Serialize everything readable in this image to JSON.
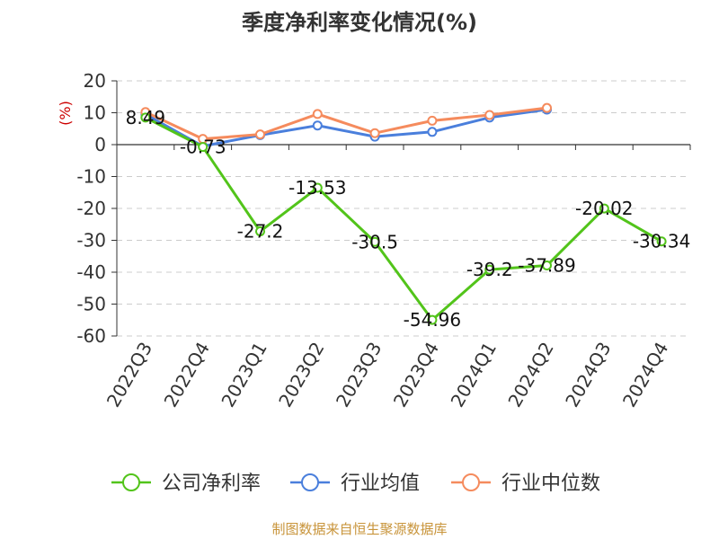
{
  "chart_data": {
    "type": "line",
    "title": "季度净利率变化情况(%)",
    "unit_label": "(%)",
    "categories": [
      "2022Q3",
      "2022Q4",
      "2023Q1",
      "2023Q2",
      "2023Q3",
      "2023Q4",
      "2024Q1",
      "2024Q2",
      "2024Q3",
      "2024Q4"
    ],
    "ylim": [
      -60,
      20
    ],
    "yticks": [
      20,
      10,
      0,
      -10,
      -20,
      -30,
      -40,
      -50,
      -60
    ],
    "grid": true,
    "legend_position": "bottom",
    "series": [
      {
        "name": "公司净利率",
        "color": "#52c41a",
        "values": [
          8.49,
          -0.73,
          -27.2,
          -13.53,
          -30.5,
          -54.96,
          -39.2,
          -37.89,
          -20.02,
          -30.34
        ],
        "labels": [
          "8.49",
          "-0.73",
          "-27.2",
          "-13.53",
          "-30.5",
          "-54.96",
          "-39.2",
          "-37.89",
          "-20.02",
          "-30.34"
        ]
      },
      {
        "name": "行业均值",
        "color": "#4a7fdc",
        "values": [
          9.5,
          -0.5,
          3.0,
          6.0,
          2.5,
          4.0,
          8.5,
          11.0,
          null,
          null
        ]
      },
      {
        "name": "行业中位数",
        "color": "#f58b5d",
        "values": [
          10.2,
          1.8,
          3.2,
          9.6,
          3.6,
          7.5,
          9.3,
          11.5,
          null,
          null
        ]
      }
    ]
  },
  "source": "制图数据来自恒生聚源数据库"
}
